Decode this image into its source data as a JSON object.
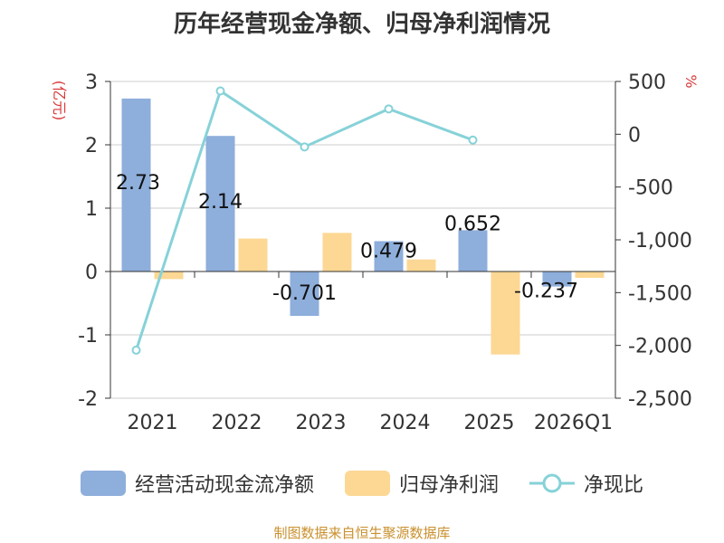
{
  "chart_data": {
    "type": "bar",
    "title": "历年经营现金净额、归母净利润情况",
    "categories": [
      "2021",
      "2022",
      "2023",
      "2024",
      "2025",
      "2026Q1"
    ],
    "y_left": {
      "label": "(亿元)",
      "range": [
        -2,
        3
      ],
      "ticks": [
        "3",
        "2",
        "1",
        "0",
        "-1",
        "-2"
      ]
    },
    "y_right": {
      "label": "%",
      "range": [
        -2500,
        500
      ],
      "ticks": [
        "500",
        "0",
        "-500",
        "-1,000",
        "-1,500",
        "-2,000",
        "-2,500"
      ]
    },
    "series": [
      {
        "name": "经营活动现金流净额",
        "kind": "bar",
        "axis": "left",
        "color": "#8eaedb",
        "values": [
          2.73,
          2.14,
          -0.701,
          0.479,
          0.652,
          -0.237
        ],
        "labels": [
          "2.73",
          "2.14",
          "-0.701",
          "0.479",
          "0.652",
          "-0.237"
        ]
      },
      {
        "name": "归母净利润",
        "kind": "bar",
        "axis": "left",
        "color": "#fcd894",
        "values": [
          -0.12,
          0.52,
          0.61,
          0.19,
          -1.31,
          -0.1
        ]
      },
      {
        "name": "净现比",
        "kind": "line",
        "axis": "right",
        "color": "#86d2d8",
        "values": [
          -2045,
          410,
          -120,
          240,
          -55,
          null
        ]
      }
    ],
    "grid": true,
    "legend_position": "bottom"
  },
  "source": {
    "text": "制图数据来自恒生聚源数据库",
    "color": "#c9902e"
  }
}
